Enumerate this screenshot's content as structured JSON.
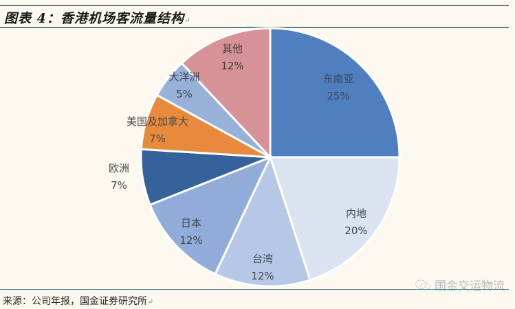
{
  "title": "图表 4：香港机场客流量结构",
  "source": "来源：公司年报，国金证券研究所",
  "watermark": "国金交运物流",
  "chart_data": {
    "type": "pie",
    "title": "香港机场客流量结构",
    "start_angle": "12 o'clock",
    "direction": "clockwise",
    "slices": [
      {
        "label": "东南亚",
        "value": 25,
        "display": "25%",
        "color": "#4f7fbf",
        "text_color": "#3a4a5e"
      },
      {
        "label": "内地",
        "value": 20,
        "display": "20%",
        "color": "#dbe2f0",
        "text_color": "#3e4654"
      },
      {
        "label": "台湾",
        "value": 12,
        "display": "12%",
        "color": "#b6c8e6",
        "text_color": "#3e4654"
      },
      {
        "label": "日本",
        "value": 12,
        "display": "12%",
        "color": "#91acd8",
        "text_color": "#3e4654"
      },
      {
        "label": "欧洲",
        "value": 7,
        "display": "7%",
        "color": "#35629a",
        "text_color": "#4a4a4a"
      },
      {
        "label": "美国及加拿大",
        "value": 7,
        "display": "7%",
        "color": "#e88a3d",
        "text_color": "#4a4a4a"
      },
      {
        "label": "大洋洲",
        "value": 5,
        "display": "5%",
        "color": "#98b1d9",
        "text_color": "#3e4654"
      },
      {
        "label": "其他",
        "value": 12,
        "display": "12%",
        "color": "#d59297",
        "text_color": "#4a3a3a"
      }
    ],
    "legend": "none (labels on slices)"
  }
}
